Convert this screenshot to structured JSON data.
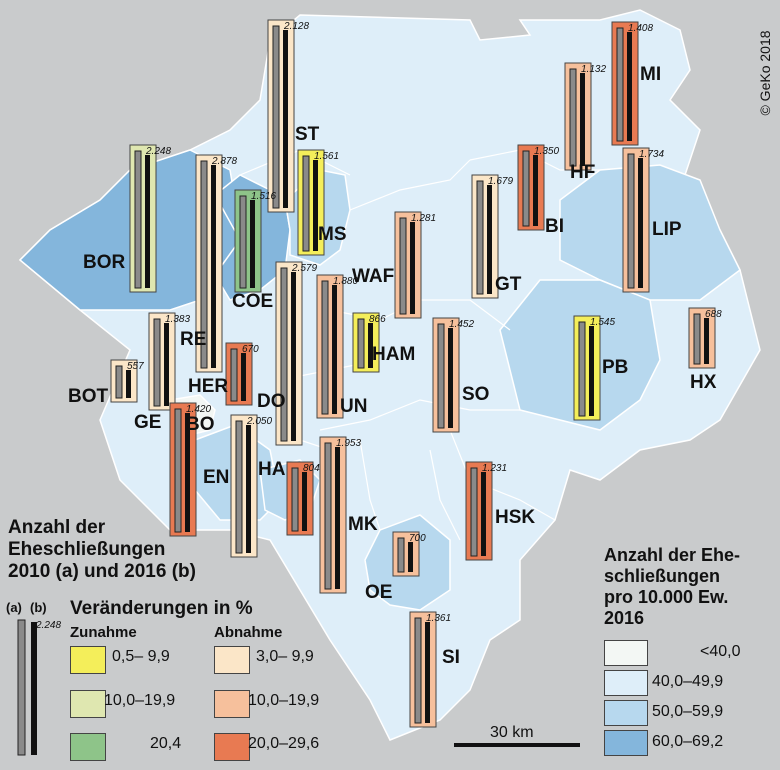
{
  "copyright": "© GeKo 2018",
  "districts": [
    {
      "code": "ST",
      "change_class": "decrease_3_9",
      "density_class": "40-49.9",
      "value_label": "2.128"
    },
    {
      "code": "MI",
      "change_class": "decrease_20_29",
      "density_class": "40-49.9",
      "value_label": "1.408"
    },
    {
      "code": "HF",
      "change_class": "decrease_10_19",
      "density_class": "40-49.9",
      "value_label": "1.132"
    },
    {
      "code": "BOR",
      "change_class": "increase_10_19",
      "density_class": "60-69.2",
      "value_label": "2.248"
    },
    {
      "code": "MS",
      "change_class": "increase_0_9",
      "density_class": "50-59.9",
      "value_label": "1.561"
    },
    {
      "code": "COE",
      "change_class": "increase_20",
      "density_class": "60-69.2",
      "value_label": "1.516"
    },
    {
      "code": "RE",
      "change_class": "decrease_3_9",
      "density_class": "40-49.9",
      "value_label": "2.878"
    },
    {
      "code": "BI",
      "change_class": "decrease_20_29",
      "density_class": "40-49.9",
      "value_label": "1.350"
    },
    {
      "code": "LIP",
      "change_class": "decrease_10_19",
      "density_class": "50-59.9",
      "value_label": "1.734"
    },
    {
      "code": "GT",
      "change_class": "decrease_3_9",
      "density_class": "40-49.9",
      "value_label": "1.679"
    },
    {
      "code": "WAF",
      "change_class": "decrease_10_19",
      "density_class": "40-49.9",
      "value_label": "1.281"
    },
    {
      "code": "DO",
      "change_class": "decrease_3_9",
      "density_class": "40-49.9",
      "value_label": "2.579"
    },
    {
      "code": "UN",
      "change_class": "decrease_10_19",
      "density_class": "40-49.9",
      "value_label": "1.880"
    },
    {
      "code": "HAM",
      "change_class": "increase_0_9",
      "density_class": "40-49.9",
      "value_label": "866"
    },
    {
      "code": "SO",
      "change_class": "decrease_10_19",
      "density_class": "40-49.9",
      "value_label": "1.452"
    },
    {
      "code": "PB",
      "change_class": "increase_0_9",
      "density_class": "50-59.9",
      "value_label": "1.545"
    },
    {
      "code": "HX",
      "change_class": "decrease_10_19",
      "density_class": "40-49.9",
      "value_label": "688"
    },
    {
      "code": "BOT",
      "change_class": "decrease_3_9",
      "density_class": "40-49.9",
      "value_label": "557"
    },
    {
      "code": "GE",
      "change_class": "decrease_3_9",
      "density_class": "40-49.9",
      "value_label": "1.383"
    },
    {
      "code": "HER",
      "change_class": "decrease_20_29",
      "density_class": "40-49.9",
      "value_label": "670"
    },
    {
      "code": "BO",
      "change_class": "decrease_20_29",
      "density_class": "<40",
      "value_label": "1.420"
    },
    {
      "code": "EN",
      "change_class": "decrease_3_9",
      "density_class": "50-59.9",
      "value_label": "2.050"
    },
    {
      "code": "HA",
      "change_class": "decrease_20_29",
      "density_class": "50-59.9",
      "value_label": "804"
    },
    {
      "code": "MK",
      "change_class": "decrease_10_19",
      "density_class": "40-49.9",
      "value_label": "1.953"
    },
    {
      "code": "HSK",
      "change_class": "decrease_20_29",
      "density_class": "40-49.9",
      "value_label": "1.231"
    },
    {
      "code": "OE",
      "change_class": "decrease_10_19",
      "density_class": "50-59.9",
      "value_label": "700"
    },
    {
      "code": "SI",
      "change_class": "decrease_10_19",
      "density_class": "40-49.9",
      "value_label": "1.361"
    }
  ],
  "legend_bars": {
    "title_lines": [
      "Anzahl der",
      "Eheschließungen",
      "2010 (a) und 2016 (b)"
    ],
    "col_a": "(a)",
    "col_b": "(b)",
    "example_value": "2.248"
  },
  "legend_change": {
    "title": "Veränderungen in %",
    "increase_head": "Zunahme",
    "decrease_head": "Abnahme",
    "items": [
      {
        "key": "increase_0_9",
        "label": "0,5–  9,9",
        "color": "#f4ee5a"
      },
      {
        "key": "increase_10_19",
        "label": "10,0–19,9",
        "color": "#dfe7b0"
      },
      {
        "key": "increase_20",
        "label": "20,4",
        "color": "#8ec489"
      },
      {
        "key": "decrease_3_9",
        "label": "3,0–  9,9",
        "color": "#fbe6c8"
      },
      {
        "key": "decrease_10_19",
        "label": "10,0–19,9",
        "color": "#f6c09c"
      },
      {
        "key": "decrease_20_29",
        "label": "20,0–29,6",
        "color": "#e87a52"
      }
    ]
  },
  "legend_density": {
    "title_lines": [
      "Anzahl der Ehe-",
      "schließungen",
      "pro 10.000 Ew.",
      "2016"
    ],
    "items": [
      {
        "key": "<40",
        "label": "<40,0",
        "color": "#f3f7f4"
      },
      {
        "key": "40-49.9",
        "label": "40,0–49,9",
        "color": "#deeef9"
      },
      {
        "key": "50-59.9",
        "label": "50,0–59,9",
        "color": "#b7d8ee"
      },
      {
        "key": "60-69.2",
        "label": "60,0–69,2",
        "color": "#84b6dc"
      }
    ]
  },
  "scale_label": "30 km"
}
